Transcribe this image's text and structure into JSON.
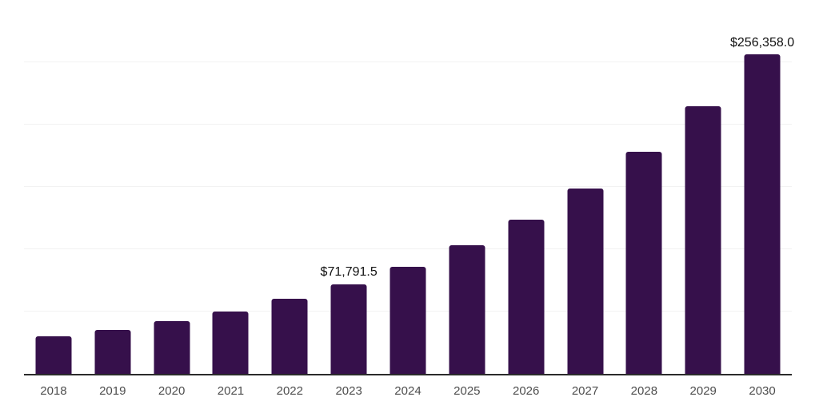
{
  "chart_data": {
    "type": "bar",
    "title": "",
    "categories": [
      "2018",
      "2019",
      "2020",
      "2021",
      "2022",
      "2023",
      "2024",
      "2025",
      "2026",
      "2027",
      "2028",
      "2029",
      "2030"
    ],
    "values": [
      30000,
      35200,
      42600,
      50000,
      60400,
      71791.5,
      86000,
      103200,
      123500,
      148500,
      178400,
      214500,
      256358
    ],
    "labeled_points": [
      {
        "category": "2023",
        "label": "$71,791.5"
      },
      {
        "category": "2030",
        "label": "$256,358.0"
      }
    ],
    "xlabel": "",
    "ylabel": "",
    "ylim": [
      0,
      300000
    ],
    "gridline_step": 50000,
    "grid": "horizontal",
    "legend": "none",
    "colors": {
      "bar": "#36104B",
      "axis_line": "#2b2b2b",
      "gridline": "#f2f2f2",
      "tick_label": "#4d4d4d",
      "data_label": "#111111",
      "background": "#ffffff"
    }
  }
}
